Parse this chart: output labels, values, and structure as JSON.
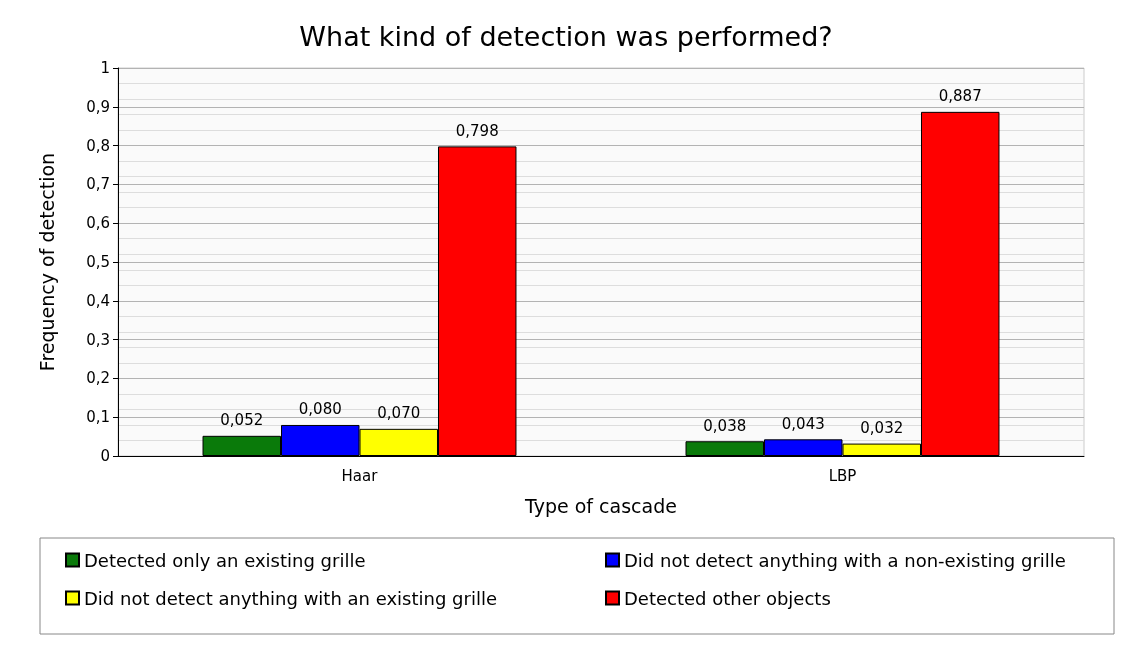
{
  "chart_data": {
    "type": "bar",
    "title": "What kind of detection was performed?",
    "xlabel": "Type of cascade",
    "ylabel": "Frequency of detection",
    "categories": [
      "Haar",
      "LBP"
    ],
    "series": [
      {
        "name": "Detected only an existing grille",
        "color": "#0a7a0a",
        "values": [
          0.052,
          0.038
        ],
        "value_labels": [
          "0,052",
          "0,038"
        ]
      },
      {
        "name": "Did not detect anything with a non-existing grille",
        "color": "#0000ff",
        "values": [
          0.08,
          0.043
        ],
        "value_labels": [
          "0,080",
          "0,043"
        ]
      },
      {
        "name": "Did not detect anything with an existing grille",
        "color": "#ffff00",
        "values": [
          0.07,
          0.032
        ],
        "value_labels": [
          "0,070",
          "0,032"
        ]
      },
      {
        "name": "Detected other objects",
        "color": "#ff0000",
        "values": [
          0.798,
          0.887
        ],
        "value_labels": [
          "0,798",
          "0,887"
        ]
      }
    ],
    "ylim": [
      0,
      1
    ],
    "yticks": [
      0,
      {
        "value": 0.1,
        "label": "0,1"
      },
      {
        "value": 0.2,
        "label": "0,2"
      },
      {
        "value": 0.3,
        "label": "0,3"
      },
      {
        "value": 0.4,
        "label": "0,4"
      },
      {
        "value": 0.5,
        "label": "0,5"
      },
      {
        "value": 0.6,
        "label": "0,6"
      },
      {
        "value": 0.7,
        "label": "0,7"
      },
      {
        "value": 0.8,
        "label": "0,8"
      },
      {
        "value": 0.9,
        "label": "0,9"
      },
      1
    ],
    "grid": true,
    "legend": "bottom"
  }
}
